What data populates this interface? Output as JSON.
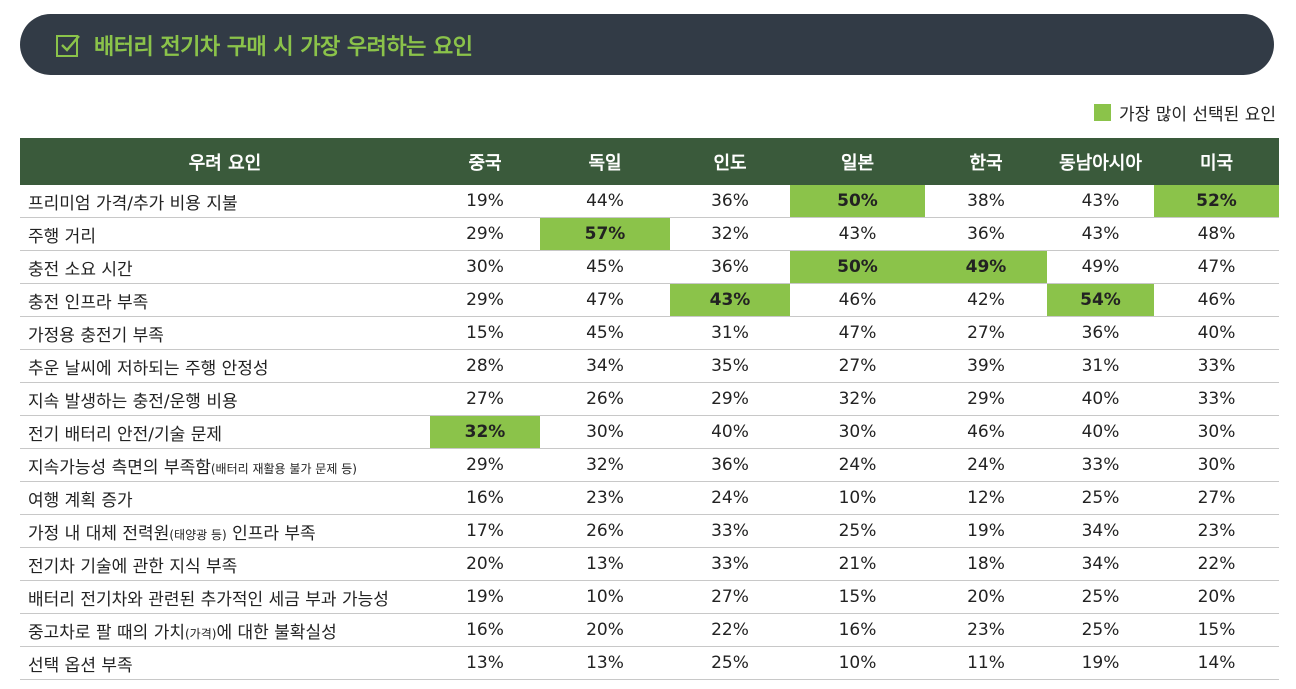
{
  "title": "배터리 전기차 구매 시 가장 우려하는 요인",
  "legend": {
    "label": "가장 많이 선택된 요인",
    "color": "#8bc34a"
  },
  "colors": {
    "header_bg": "#3a5a3b",
    "title_bg": "#323b46",
    "highlight": "#8bc34a"
  },
  "chart_data": {
    "type": "table",
    "title": "배터리 전기차 구매 시 가장 우려하는 요인",
    "columns": [
      "우려 요인",
      "중국",
      "독일",
      "인도",
      "일본",
      "한국",
      "동남아시아",
      "미국"
    ],
    "rows": [
      {
        "factor": "프리미엄 가격/추가 비용 지불",
        "note": "",
        "values": [
          "19%",
          "44%",
          "36%",
          "50%",
          "38%",
          "43%",
          "52%"
        ],
        "highlight": [
          3,
          6
        ]
      },
      {
        "factor": "주행 거리",
        "note": "",
        "values": [
          "29%",
          "57%",
          "32%",
          "43%",
          "36%",
          "43%",
          "48%"
        ],
        "highlight": [
          1
        ]
      },
      {
        "factor": "충전 소요 시간",
        "note": "",
        "values": [
          "30%",
          "45%",
          "36%",
          "50%",
          "49%",
          "49%",
          "47%"
        ],
        "highlight": [
          3,
          4
        ]
      },
      {
        "factor": "충전 인프라 부족",
        "note": "",
        "values": [
          "29%",
          "47%",
          "43%",
          "46%",
          "42%",
          "54%",
          "46%"
        ],
        "highlight": [
          2,
          5
        ]
      },
      {
        "factor": "가정용 충전기 부족",
        "note": "",
        "values": [
          "15%",
          "45%",
          "31%",
          "47%",
          "27%",
          "36%",
          "40%"
        ],
        "highlight": []
      },
      {
        "factor": "추운 날씨에 저하되는 주행 안정성",
        "note": "",
        "values": [
          "28%",
          "34%",
          "35%",
          "27%",
          "39%",
          "31%",
          "33%"
        ],
        "highlight": []
      },
      {
        "factor": "지속 발생하는 충전/운행 비용",
        "note": "",
        "values": [
          "27%",
          "26%",
          "29%",
          "32%",
          "29%",
          "40%",
          "33%"
        ],
        "highlight": []
      },
      {
        "factor": "전기 배터리 안전/기술 문제",
        "note": "",
        "values": [
          "32%",
          "30%",
          "40%",
          "30%",
          "46%",
          "40%",
          "30%"
        ],
        "highlight": [
          0
        ]
      },
      {
        "factor": "지속가능성 측면의 부족함",
        "note": "(배터리 재활용 불가 문제 등)",
        "values": [
          "29%",
          "32%",
          "36%",
          "24%",
          "24%",
          "33%",
          "30%"
        ],
        "highlight": []
      },
      {
        "factor": "여행 계획 증가",
        "note": "",
        "values": [
          "16%",
          "23%",
          "24%",
          "10%",
          "12%",
          "25%",
          "27%"
        ],
        "highlight": []
      },
      {
        "factor": "가정 내 대체 전력원",
        "note": "(태양광 등)",
        "factor_suffix": " 인프라 부족",
        "values": [
          "17%",
          "26%",
          "33%",
          "25%",
          "19%",
          "34%",
          "23%"
        ],
        "highlight": []
      },
      {
        "factor": "전기차 기술에 관한 지식 부족",
        "note": "",
        "values": [
          "20%",
          "13%",
          "33%",
          "21%",
          "18%",
          "34%",
          "22%"
        ],
        "highlight": []
      },
      {
        "factor": "배터리 전기차와 관련된 추가적인 세금 부과 가능성",
        "note": "",
        "values": [
          "19%",
          "10%",
          "27%",
          "15%",
          "20%",
          "25%",
          "20%"
        ],
        "highlight": []
      },
      {
        "factor": "중고차로 팔 때의 가치",
        "note": "(가격)",
        "factor_suffix": "에 대한 불확실성",
        "values": [
          "16%",
          "20%",
          "22%",
          "16%",
          "23%",
          "25%",
          "15%"
        ],
        "highlight": []
      },
      {
        "factor": "선택 옵션 부족",
        "note": "",
        "values": [
          "13%",
          "13%",
          "25%",
          "10%",
          "11%",
          "19%",
          "14%"
        ],
        "highlight": []
      }
    ]
  }
}
